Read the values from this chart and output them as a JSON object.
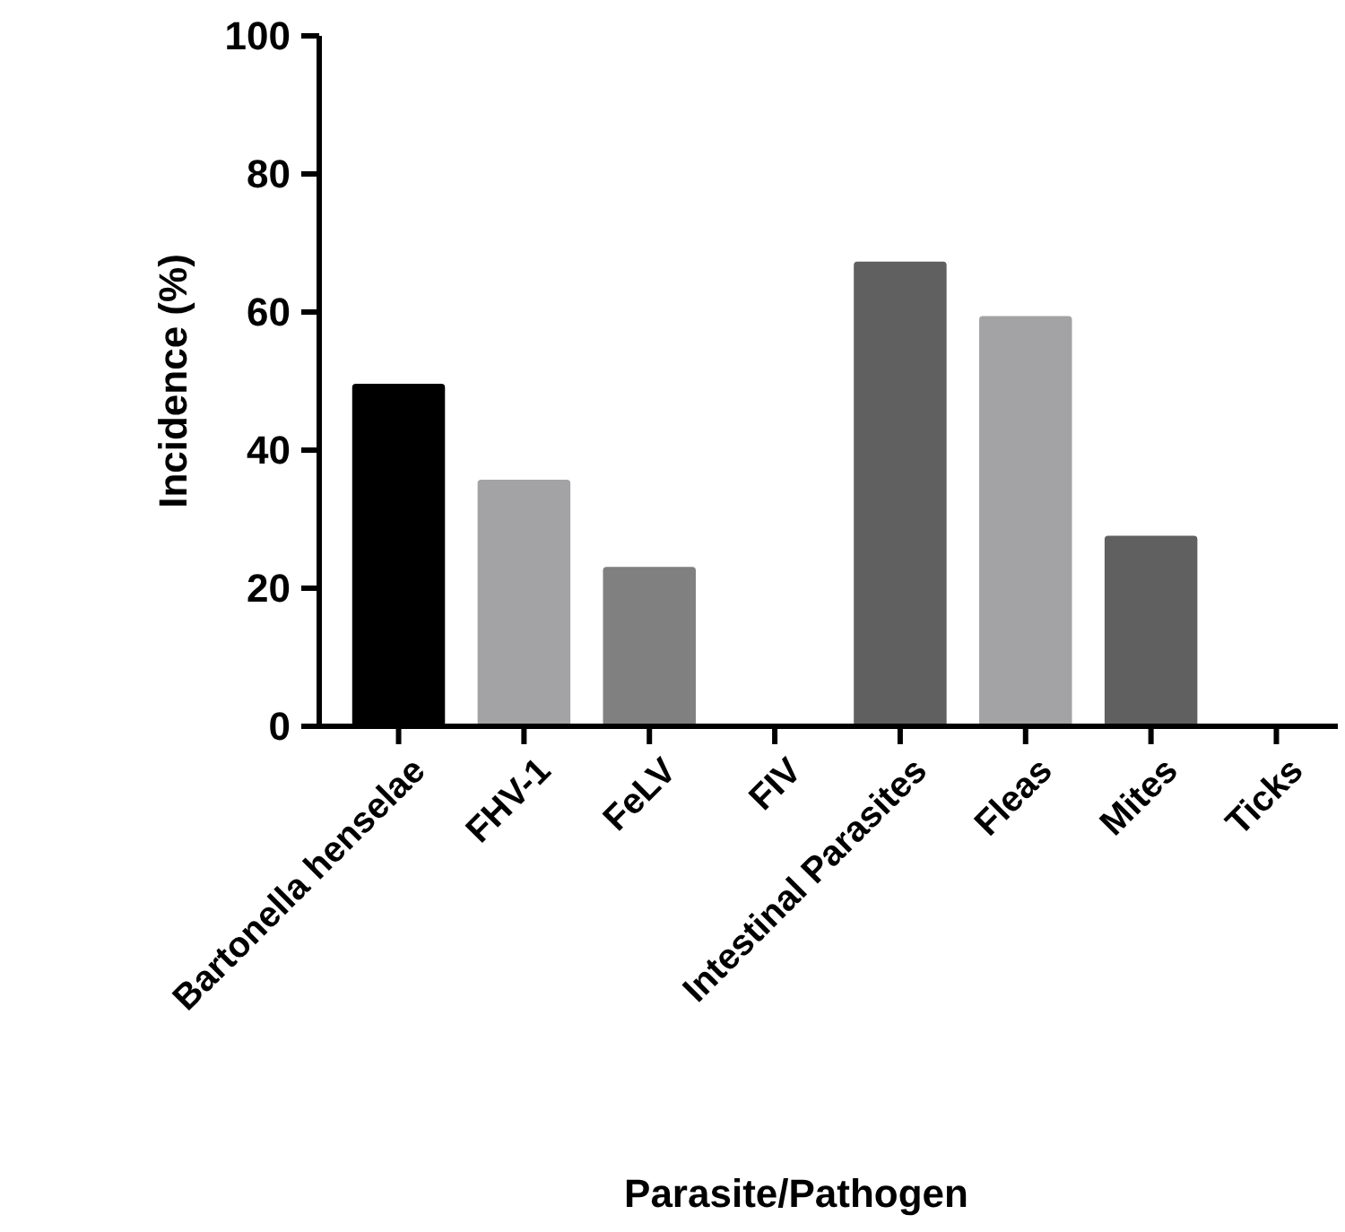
{
  "chart_data": {
    "type": "bar",
    "xlabel": "Parasite/Pathogen",
    "ylabel": "Incidence (%)",
    "categories": [
      "Bartonella henselae",
      "FHV-1",
      "FeLV",
      "FIV",
      "Intestinal Parasites",
      "Fleas",
      "Mites",
      "Ticks"
    ],
    "values": [
      49.6,
      35.7,
      23.1,
      0,
      67.3,
      59.4,
      27.6,
      0
    ],
    "colors": [
      "#000000",
      "#a3a3a6",
      "#808080",
      "#606060",
      "#606060",
      "#a3a3a6",
      "#606060",
      "#a3a3a6"
    ],
    "ylim": [
      0,
      100
    ],
    "yticks": [
      0,
      20,
      40,
      60,
      80,
      100
    ],
    "grid": false
  }
}
